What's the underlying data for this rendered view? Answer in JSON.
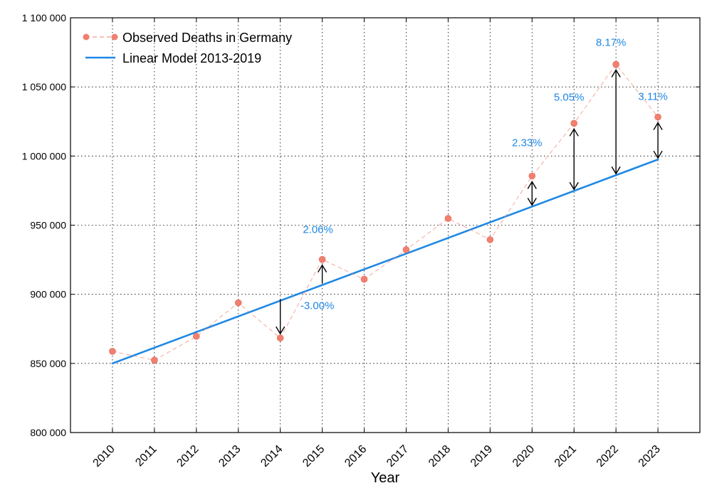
{
  "chart_data": {
    "type": "line",
    "title": "",
    "xlabel": "Year",
    "ylabel": "",
    "ylim": [
      800000,
      1100000
    ],
    "yticks": [
      800000,
      850000,
      900000,
      950000,
      1000000,
      1050000,
      1100000
    ],
    "ytick_labels": [
      "800 000",
      "850 000",
      "900 000",
      "950 000",
      "1 000 000",
      "1 050 000",
      "1 100 000"
    ],
    "x": [
      2010,
      2011,
      2012,
      2013,
      2014,
      2015,
      2016,
      2017,
      2018,
      2019,
      2020,
      2021,
      2022,
      2023
    ],
    "xtick_labels": [
      "2010",
      "2011",
      "2012",
      "2013",
      "2014",
      "2015",
      "2016",
      "2017",
      "2018",
      "2019",
      "2020",
      "2021",
      "2022",
      "2023"
    ],
    "grid": true,
    "legend_position": "top-left",
    "series": [
      {
        "name": "Observed Deaths in Germany",
        "style": "dashed-markers",
        "color": "#f08070",
        "values": [
          858768,
          852328,
          869582,
          893825,
          868356,
          925200,
          910899,
          932272,
          954874,
          939520,
          985572,
          1023687,
          1066341,
          1028206
        ]
      },
      {
        "name": "Linear Model 2013-2019",
        "style": "solid",
        "color": "#1e88e5",
        "x_range": [
          2010,
          2023
        ],
        "y_range": [
          850000,
          997500
        ]
      }
    ],
    "annotations": [
      {
        "year": 2014,
        "label": "-3.00%",
        "direction": "down"
      },
      {
        "year": 2015,
        "label": "2.06%",
        "direction": "up"
      },
      {
        "year": 2020,
        "label": "2.33%",
        "direction": "both"
      },
      {
        "year": 2021,
        "label": "5.05%",
        "direction": "both"
      },
      {
        "year": 2022,
        "label": "8.17%",
        "direction": "both"
      },
      {
        "year": 2023,
        "label": "3.11%",
        "direction": "both"
      }
    ],
    "annotation_color": "#1e88e5"
  }
}
